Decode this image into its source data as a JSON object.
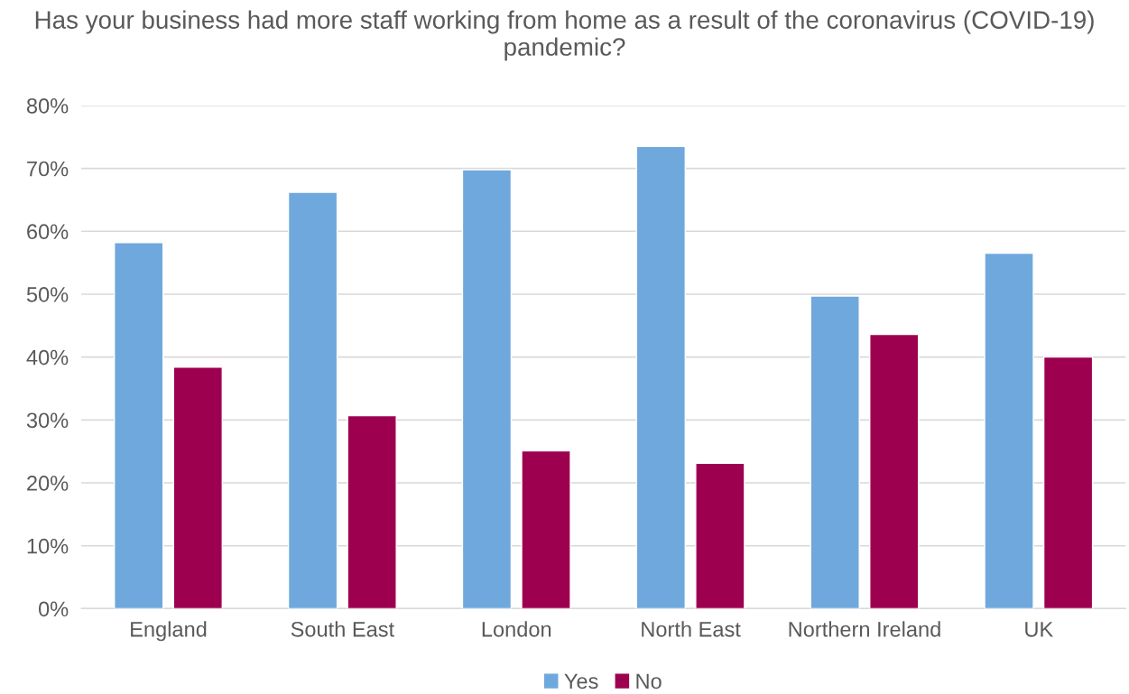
{
  "chart_data": {
    "type": "bar",
    "title": "Has your business had more staff working from home as a result of the coronavirus (COVID-19) pandemic?",
    "categories": [
      "England",
      "South East",
      "London",
      "North East",
      "Northern Ireland",
      "UK"
    ],
    "series": [
      {
        "name": "Yes",
        "color": "#6fa8dc",
        "values": [
          58.2,
          66.2,
          69.8,
          73.5,
          49.7,
          56.5
        ]
      },
      {
        "name": "No",
        "color": "#9e0050",
        "values": [
          38.4,
          30.7,
          25.1,
          23.1,
          43.6,
          40.0
        ]
      }
    ],
    "ylim": [
      0,
      80
    ],
    "yticks": [
      {
        "value": 0,
        "label": "0%"
      },
      {
        "value": 10,
        "label": "10%"
      },
      {
        "value": 20,
        "label": "20%"
      },
      {
        "value": 30,
        "label": "30%"
      },
      {
        "value": 40,
        "label": "40%"
      },
      {
        "value": 50,
        "label": "50%"
      },
      {
        "value": 60,
        "label": "60%"
      },
      {
        "value": 70,
        "label": "70%"
      },
      {
        "value": 80,
        "label": "80%"
      }
    ],
    "grid": "y",
    "legend": "bottom"
  }
}
